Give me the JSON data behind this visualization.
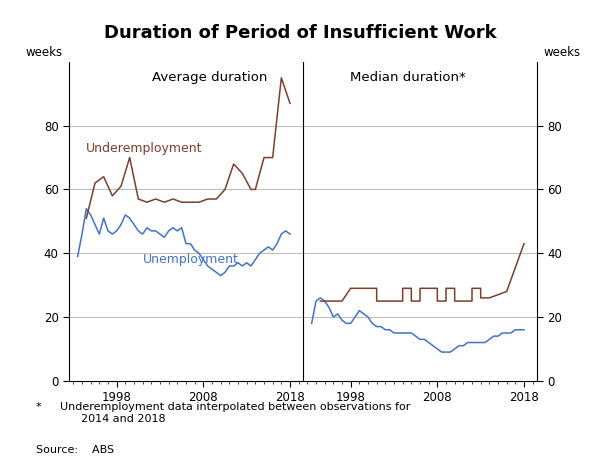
{
  "title": "Duration of Period of Insufficient Work",
  "left_panel_title": "Average duration",
  "right_panel_title": "Median duration*",
  "ylabel_left": "weeks",
  "ylabel_right": "weeks",
  "ylim": [
    0,
    100
  ],
  "yticks": [
    0,
    20,
    40,
    60,
    80
  ],
  "footnote_star": "*",
  "footnote_text": "     Underemployment data interpolated between observations for\n      2014 and 2018",
  "source": "Source:    ABS",
  "underemployment_color": "#7B3F2E",
  "unemployment_color": "#4472C4",
  "label_underemployment": "Underemployment",
  "label_unemployment": "Unemployment",
  "left_unemp_x": [
    1993.5,
    1994.0,
    1994.5,
    1995.0,
    1995.5,
    1996.0,
    1996.5,
    1997.0,
    1997.5,
    1998.0,
    1998.5,
    1999.0,
    1999.5,
    2000.0,
    2000.5,
    2001.0,
    2001.5,
    2002.0,
    2002.5,
    2003.0,
    2003.5,
    2004.0,
    2004.5,
    2005.0,
    2005.5,
    2006.0,
    2006.5,
    2007.0,
    2007.5,
    2008.0,
    2008.5,
    2009.0,
    2009.5,
    2010.0,
    2010.5,
    2011.0,
    2011.5,
    2012.0,
    2012.5,
    2013.0,
    2013.5,
    2014.0,
    2014.5,
    2015.0,
    2015.5,
    2016.0,
    2016.5,
    2017.0,
    2017.5,
    2018.0
  ],
  "left_unemp_y": [
    39,
    46,
    54,
    52,
    49,
    46,
    51,
    47,
    46,
    47,
    49,
    52,
    51,
    49,
    47,
    46,
    48,
    47,
    47,
    46,
    45,
    47,
    48,
    47,
    48,
    43,
    43,
    41,
    40,
    38,
    36,
    35,
    34,
    33,
    34,
    36,
    36,
    37,
    36,
    37,
    36,
    38,
    40,
    41,
    42,
    41,
    43,
    46,
    47,
    46
  ],
  "left_underem_x": [
    1994.5,
    1995.5,
    1996.5,
    1997.5,
    1998.5,
    1999.5,
    2000.5,
    2001.5,
    2002.5,
    2003.5,
    2004.5,
    2005.5,
    2006.5,
    2007.5,
    2008.5,
    2009.5,
    2010.5,
    2011.5,
    2012.5,
    2013.5,
    2014.0,
    2015.0,
    2016.0,
    2017.0,
    2018.0
  ],
  "left_underem_y": [
    51,
    62,
    64,
    58,
    61,
    70,
    57,
    56,
    57,
    56,
    57,
    56,
    56,
    56,
    57,
    57,
    60,
    68,
    65,
    60,
    60,
    70,
    70,
    95,
    87
  ],
  "right_unemp_x": [
    1993.5,
    1994.0,
    1994.5,
    1995.0,
    1995.5,
    1996.0,
    1996.5,
    1997.0,
    1997.5,
    1998.0,
    1998.5,
    1999.0,
    1999.5,
    2000.0,
    2000.5,
    2001.0,
    2001.5,
    2002.0,
    2002.5,
    2003.0,
    2003.5,
    2004.0,
    2004.5,
    2005.0,
    2005.5,
    2006.0,
    2006.5,
    2007.0,
    2007.5,
    2008.0,
    2008.5,
    2009.0,
    2009.5,
    2010.0,
    2010.5,
    2011.0,
    2011.5,
    2012.0,
    2012.5,
    2013.0,
    2013.5,
    2014.0,
    2014.5,
    2015.0,
    2015.5,
    2016.0,
    2016.5,
    2017.0,
    2017.5,
    2018.0
  ],
  "right_unemp_y": [
    18,
    25,
    26,
    25,
    23,
    20,
    21,
    19,
    18,
    18,
    20,
    22,
    21,
    20,
    18,
    17,
    17,
    16,
    16,
    15,
    15,
    15,
    15,
    15,
    14,
    13,
    13,
    12,
    11,
    10,
    9,
    9,
    9,
    10,
    11,
    11,
    12,
    12,
    12,
    12,
    12,
    13,
    14,
    14,
    15,
    15,
    15,
    16,
    16,
    16
  ],
  "right_underem_x": [
    1994.5,
    1997.0,
    1997.0,
    1998.0,
    1998.0,
    2001.0,
    2001.0,
    2002.0,
    2002.0,
    2004.0,
    2004.0,
    2005.0,
    2005.0,
    2006.0,
    2006.0,
    2008.0,
    2008.0,
    2009.0,
    2009.0,
    2010.0,
    2010.0,
    2012.0,
    2012.0,
    2013.0,
    2013.0,
    2014.0,
    2014.0,
    2016.0,
    2016.0,
    2018.0
  ],
  "right_underem_y": [
    25,
    25,
    25,
    29,
    29,
    29,
    25,
    25,
    25,
    25,
    29,
    29,
    25,
    25,
    29,
    29,
    25,
    25,
    29,
    29,
    25,
    25,
    29,
    29,
    26,
    26,
    26,
    28,
    28,
    43
  ],
  "xlim": [
    1992.5,
    2019.5
  ],
  "xticks": [
    1998,
    2008,
    2018
  ]
}
